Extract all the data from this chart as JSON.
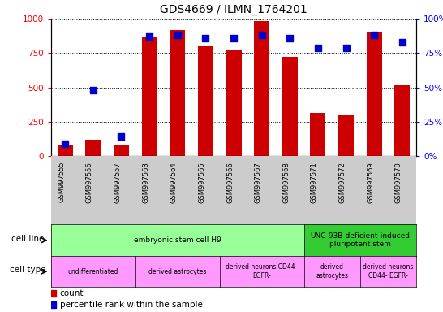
{
  "title": "GDS4669 / ILMN_1764201",
  "samples": [
    "GSM997555",
    "GSM997556",
    "GSM997557",
    "GSM997563",
    "GSM997564",
    "GSM997565",
    "GSM997566",
    "GSM997567",
    "GSM997568",
    "GSM997571",
    "GSM997572",
    "GSM997569",
    "GSM997570"
  ],
  "counts": [
    75,
    120,
    80,
    870,
    920,
    800,
    775,
    980,
    720,
    315,
    295,
    900,
    520
  ],
  "percentiles": [
    9,
    48,
    14,
    87,
    88,
    86,
    86,
    88,
    86,
    79,
    79,
    88,
    83
  ],
  "bar_color": "#cc0000",
  "dot_color": "#0000cc",
  "ylim_left": [
    0,
    1000
  ],
  "ylim_right": [
    0,
    100
  ],
  "yticks_left": [
    0,
    250,
    500,
    750,
    1000
  ],
  "yticks_right": [
    0,
    25,
    50,
    75,
    100
  ],
  "ytick_labels_right": [
    "0%",
    "25%",
    "50%",
    "75%",
    "100%"
  ],
  "cell_line_groups": [
    {
      "label": "embryonic stem cell H9",
      "start": 0,
      "end": 8,
      "color": "#99ff99"
    },
    {
      "label": "UNC-93B-deficient-induced\npluripotent stem",
      "start": 9,
      "end": 12,
      "color": "#33cc33"
    }
  ],
  "cell_type_groups": [
    {
      "label": "undifferentiated",
      "start": 0,
      "end": 2,
      "color": "#ff99ff"
    },
    {
      "label": "derived astrocytes",
      "start": 3,
      "end": 5,
      "color": "#ff99ff"
    },
    {
      "label": "derived neurons CD44-\nEGFR-",
      "start": 6,
      "end": 8,
      "color": "#ff99ff"
    },
    {
      "label": "derived\nastrocytes",
      "start": 9,
      "end": 10,
      "color": "#ff99ff"
    },
    {
      "label": "derived neurons\nCD44- EGFR-",
      "start": 11,
      "end": 12,
      "color": "#ff99ff"
    }
  ],
  "legend_count_color": "#cc0000",
  "legend_pct_color": "#0000cc"
}
